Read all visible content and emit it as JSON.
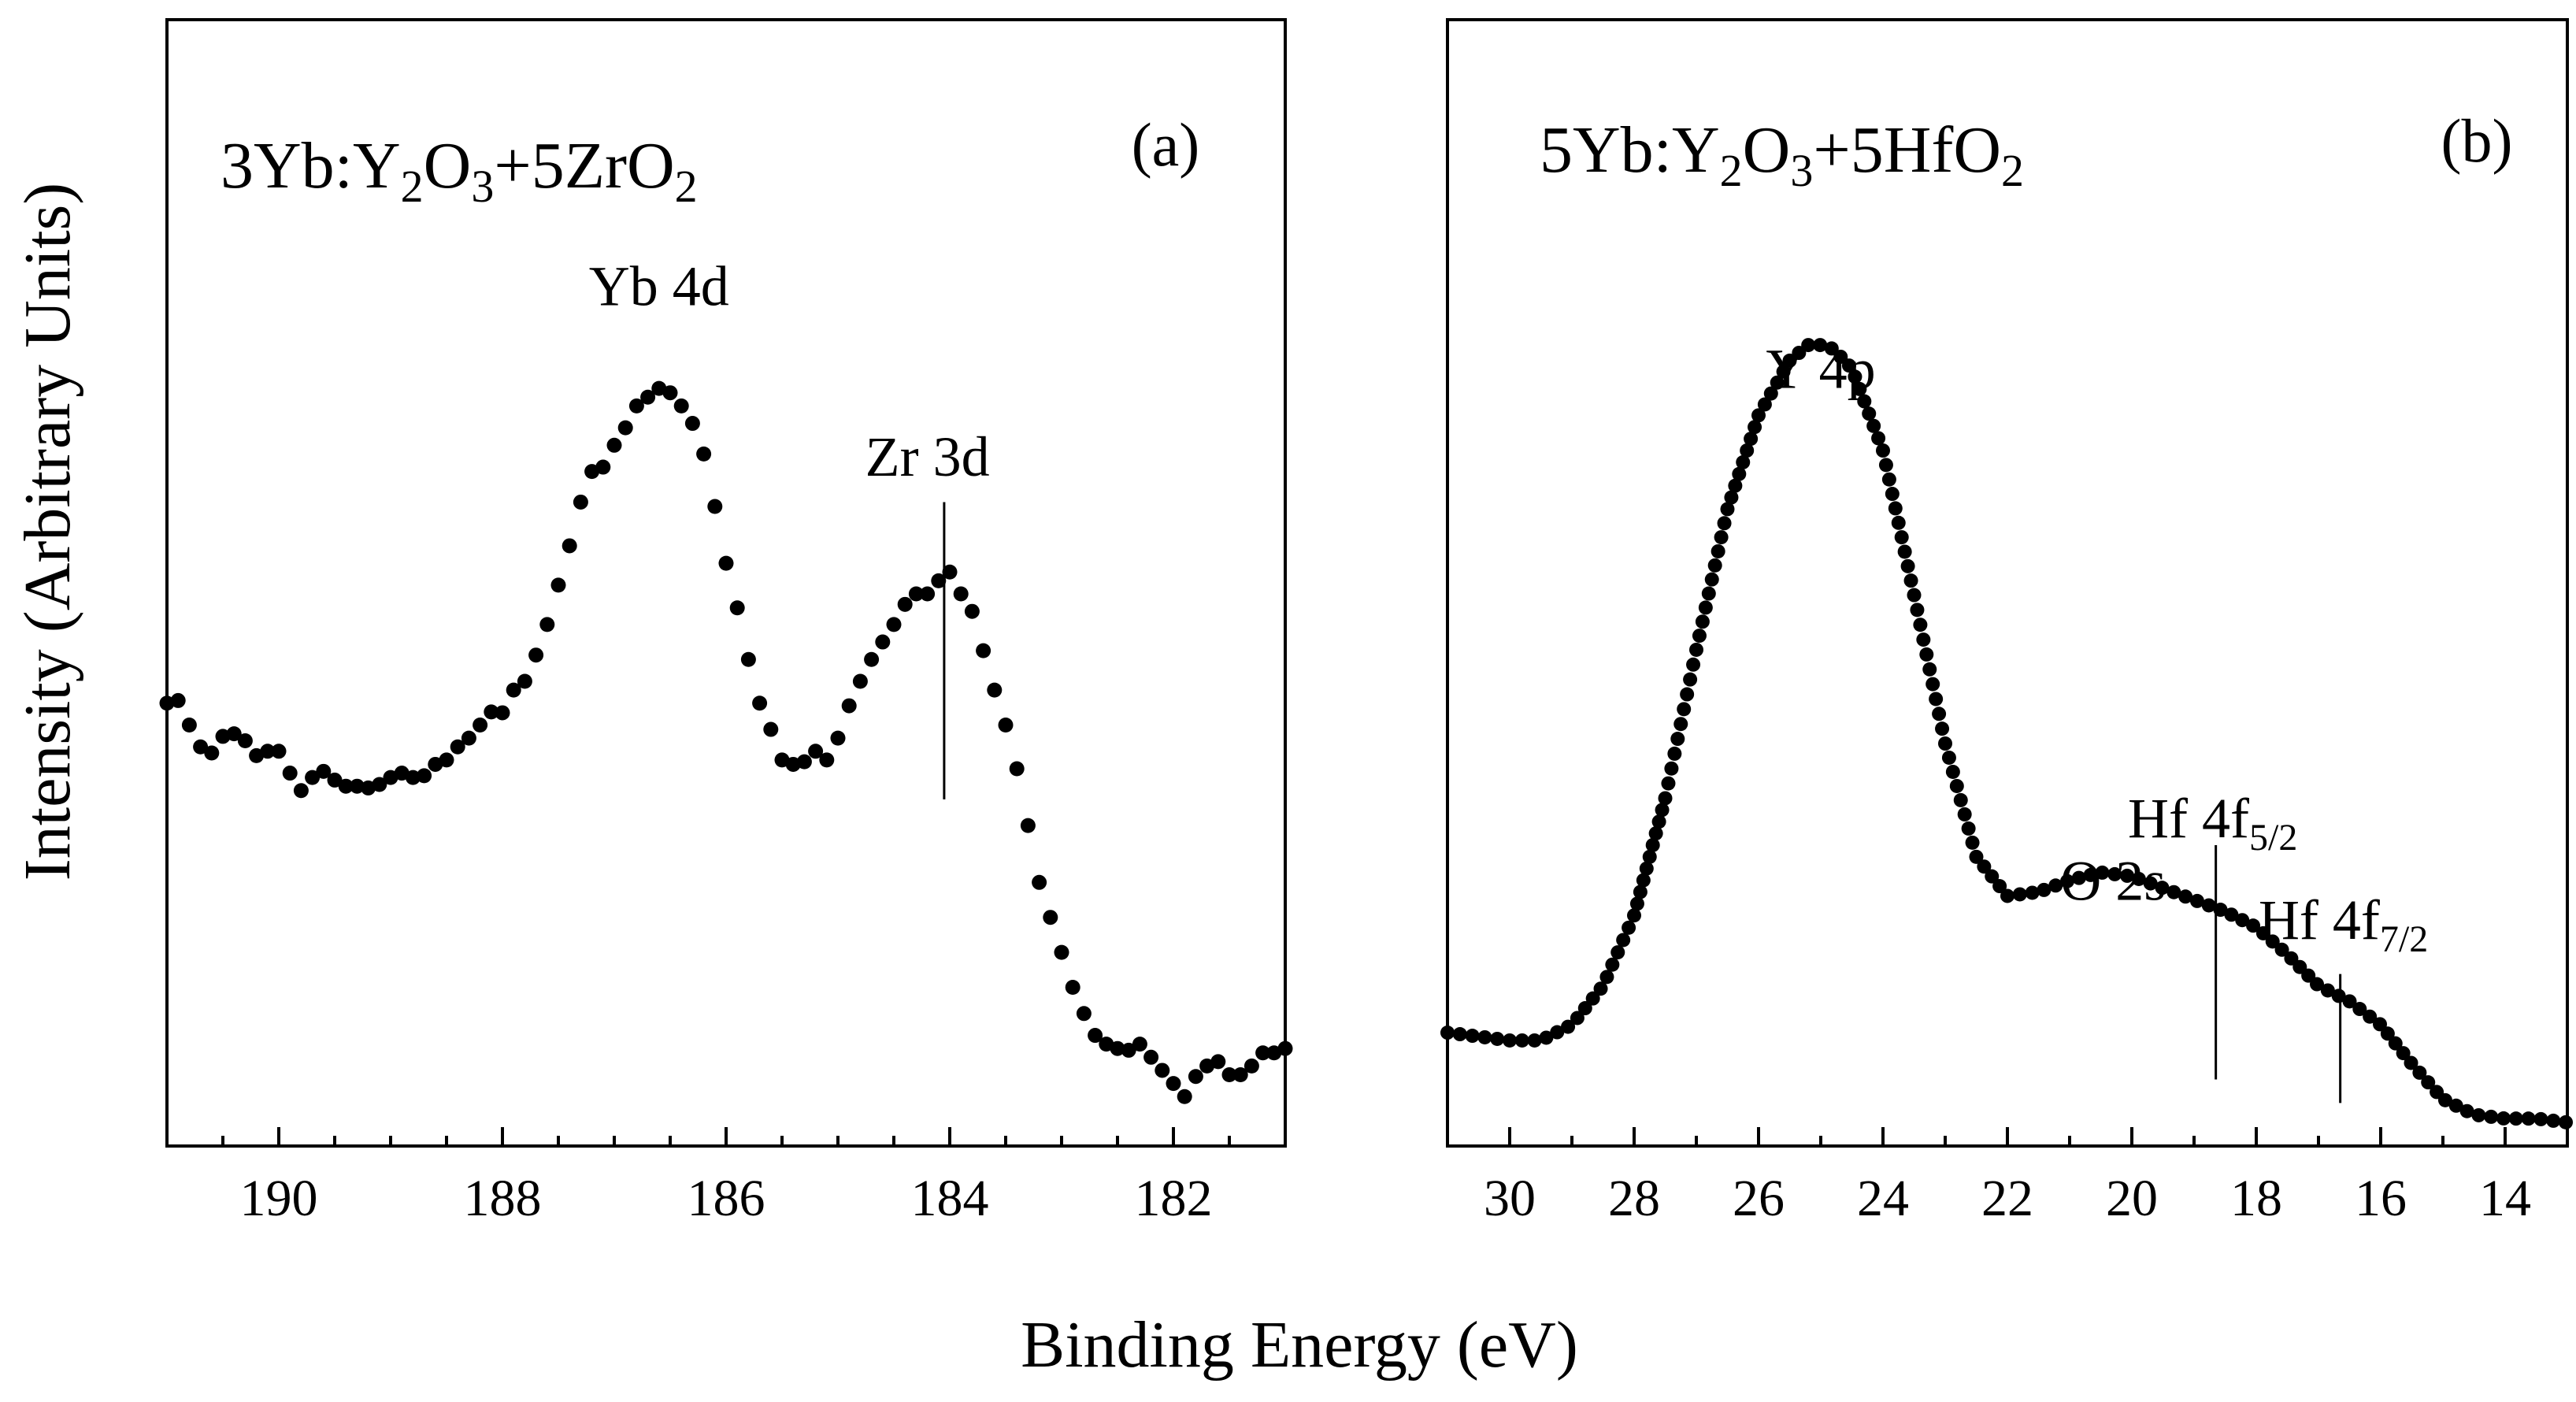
{
  "figure": {
    "ylabel": "Intensity (Arbitrary Units)",
    "xlabel": "Binding Energy (eV)",
    "colors": {
      "points": "#000000",
      "axes": "#000000",
      "background": "#ffffff"
    }
  },
  "chart_data": [
    {
      "type": "scatter",
      "panel_label": "(a)",
      "title_parts": [
        "3Yb:Y",
        "2",
        "O",
        "3",
        "+5ZrO",
        "2"
      ],
      "xlabel": "Binding Energy (eV)",
      "ylabel": "Intensity (Arbitrary Units)",
      "xlim": [
        191,
        181
      ],
      "ylim": [
        0,
        1
      ],
      "xticks": [
        190,
        188,
        186,
        184,
        182
      ],
      "xtick_labels": [
        "190",
        "188",
        "186",
        "184",
        "182"
      ],
      "minor_step": 0.5,
      "marker_line": {
        "x": 184.05,
        "y_bottom": 0.365,
        "y_top": 0.705
      },
      "peak_labels": [
        {
          "label": "Yb 4d",
          "x": 186.6,
          "y": 0.93
        },
        {
          "label": "Zr 3d",
          "x": 184.2,
          "y": 0.735
        }
      ],
      "series": [
        {
          "name": "3Yb:Y2O3+5ZrO2",
          "x": [
            191.0,
            190.9,
            190.8,
            190.7,
            190.6,
            190.5,
            190.4,
            190.3,
            190.2,
            190.1,
            190.0,
            189.9,
            189.8,
            189.7,
            189.6,
            189.5,
            189.4,
            189.3,
            189.2,
            189.1,
            189.0,
            188.9,
            188.8,
            188.7,
            188.6,
            188.5,
            188.4,
            188.3,
            188.2,
            188.1,
            188.0,
            187.9,
            187.8,
            187.7,
            187.6,
            187.5,
            187.4,
            187.3,
            187.2,
            187.1,
            187.0,
            186.9,
            186.8,
            186.7,
            186.6,
            186.5,
            186.4,
            186.3,
            186.2,
            186.1,
            186.0,
            185.9,
            185.8,
            185.7,
            185.6,
            185.5,
            185.4,
            185.3,
            185.2,
            185.1,
            185.0,
            184.9,
            184.8,
            184.7,
            184.6,
            184.5,
            184.4,
            184.3,
            184.2,
            184.1,
            184.0,
            183.9,
            183.8,
            183.7,
            183.6,
            183.5,
            183.4,
            183.3,
            183.2,
            183.1,
            183.0,
            182.9,
            182.8,
            182.7,
            182.6,
            182.5,
            182.4,
            182.3,
            182.2,
            182.1,
            182.0,
            181.9,
            181.8,
            181.7,
            181.6,
            181.5,
            181.4,
            181.3,
            181.2,
            181.1,
            181.0
          ],
          "y": [
            0.475,
            0.478,
            0.45,
            0.425,
            0.418,
            0.437,
            0.44,
            0.432,
            0.415,
            0.42,
            0.42,
            0.395,
            0.375,
            0.39,
            0.397,
            0.387,
            0.38,
            0.38,
            0.378,
            0.382,
            0.39,
            0.395,
            0.39,
            0.392,
            0.405,
            0.41,
            0.425,
            0.435,
            0.45,
            0.465,
            0.464,
            0.49,
            0.5,
            0.53,
            0.565,
            0.61,
            0.655,
            0.705,
            0.74,
            0.745,
            0.77,
            0.79,
            0.815,
            0.825,
            0.835,
            0.83,
            0.815,
            0.795,
            0.76,
            0.7,
            0.635,
            0.584,
            0.525,
            0.475,
            0.445,
            0.41,
            0.405,
            0.408,
            0.42,
            0.41,
            0.435,
            0.472,
            0.5,
            0.525,
            0.545,
            0.565,
            0.588,
            0.6,
            0.6,
            0.615,
            0.625,
            0.6,
            0.58,
            0.535,
            0.49,
            0.45,
            0.4,
            0.335,
            0.27,
            0.23,
            0.19,
            0.15,
            0.12,
            0.095,
            0.085,
            0.08,
            0.078,
            0.085,
            0.07,
            0.055,
            0.04,
            0.025,
            0.048,
            0.06,
            0.065,
            0.05,
            0.05,
            0.06,
            0.075,
            0.075,
            0.08
          ]
        }
      ]
    },
    {
      "type": "scatter",
      "panel_label": "(b)",
      "title_parts": [
        "5Yb:Y",
        "2",
        "O",
        "3",
        "+5HfO",
        "2"
      ],
      "xlabel": "Binding Energy (eV)",
      "ylabel": "Intensity (Arbitrary Units)",
      "xlim": [
        31,
        13
      ],
      "ylim": [
        0,
        1
      ],
      "xticks": [
        30,
        28,
        26,
        24,
        22,
        20,
        18,
        16,
        14
      ],
      "xtick_labels": [
        "30",
        "28",
        "26",
        "24",
        "22",
        "20",
        "18",
        "16",
        "14"
      ],
      "minor_step": 1,
      "marker_lines": [
        {
          "label": "Hf 4f5/2",
          "x": 18.65,
          "y_bottom": 0.07,
          "y_top": 0.37
        },
        {
          "label": "Hf 4f7/2",
          "x": 16.65,
          "y_bottom": 0.04,
          "y_top": 0.205
        }
      ],
      "peak_labels": [
        {
          "label": "Y 4p",
          "x": 25.0,
          "y": 0.955
        },
        {
          "label": "O 2s",
          "x": 20.3,
          "y": 0.3
        }
      ],
      "hf_labels": [
        {
          "main": "Hf 4f",
          "sub": "5/2",
          "x": 18.7,
          "y": 0.38
        },
        {
          "main": "Hf 4f",
          "sub": "7/2",
          "x": 16.6,
          "y": 0.25
        }
      ],
      "series": [
        {
          "name": "5Yb:Y2O3+5HfO2",
          "x": [
            31.0,
            30.0,
            29.5,
            29.0,
            28.5,
            28.0,
            27.5,
            27.0,
            26.5,
            26.0,
            25.5,
            25.2,
            25.0,
            24.8,
            24.5,
            24.0,
            23.5,
            23.0,
            22.5,
            22.0,
            21.5,
            21.0,
            20.5,
            20.0,
            19.5,
            19.0,
            18.5,
            18.0,
            17.5,
            17.0,
            16.5,
            16.0,
            15.5,
            15.0,
            14.5,
            14.0,
            13.5,
            13.0
          ],
          "y": [
            0.13,
            0.12,
            0.12,
            0.14,
            0.19,
            0.28,
            0.43,
            0.62,
            0.8,
            0.92,
            0.99,
            1.01,
            1.01,
            1.005,
            0.98,
            0.875,
            0.69,
            0.5,
            0.355,
            0.305,
            0.31,
            0.325,
            0.335,
            0.33,
            0.315,
            0.3,
            0.285,
            0.265,
            0.23,
            0.19,
            0.17,
            0.14,
            0.09,
            0.045,
            0.025,
            0.02,
            0.02,
            0.015
          ]
        }
      ]
    }
  ]
}
